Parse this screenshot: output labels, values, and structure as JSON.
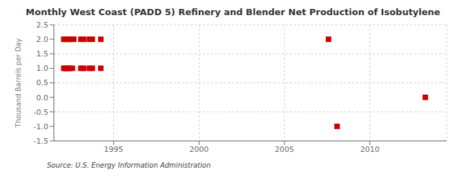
{
  "chart_data": {
    "type": "scatter",
    "title": "Monthly West Coast (PADD 5) Refinery and Blender Net Production of Isobutylene",
    "ylabel": "Thousand Barrels per Day",
    "source": "Source: U.S. Energy Information Administration",
    "x": [
      1992.083,
      1992.167,
      1992.25,
      1992.333,
      1992.417,
      1992.583,
      1992.667,
      1993.083,
      1993.25,
      1993.583,
      1993.75,
      1994.25,
      1992.083,
      1992.167,
      1992.25,
      1992.333,
      1992.417,
      1992.583,
      1993.083,
      1993.25,
      1993.583,
      1993.75,
      1994.25,
      2007.583,
      2008.083,
      2013.25
    ],
    "values": [
      2.0,
      2.0,
      2.0,
      2.0,
      2.0,
      2.0,
      2.0,
      2.0,
      2.0,
      2.0,
      2.0,
      2.0,
      1.0,
      1.0,
      1.0,
      1.0,
      1.0,
      1.0,
      1.0,
      1.0,
      1.0,
      1.0,
      1.0,
      2.0,
      -1.0,
      0.0
    ],
    "color": "#cc0000",
    "marker": "square",
    "xlim": [
      1991.5,
      2014.5
    ],
    "xticks": [
      1995,
      2000,
      2005,
      2010
    ],
    "ylim": [
      -1.5,
      2.5
    ],
    "yticks": [
      -1.5,
      {
        "value": -1.0,
        "label": "-1.0"
      },
      -0.5,
      {
        "value": 0.0,
        "label": "0.0"
      },
      0.5,
      {
        "value": 1.0,
        "label": "1.0"
      },
      1.5,
      {
        "value": 2.0,
        "label": "2.0"
      },
      2.5
    ],
    "grid": true
  }
}
